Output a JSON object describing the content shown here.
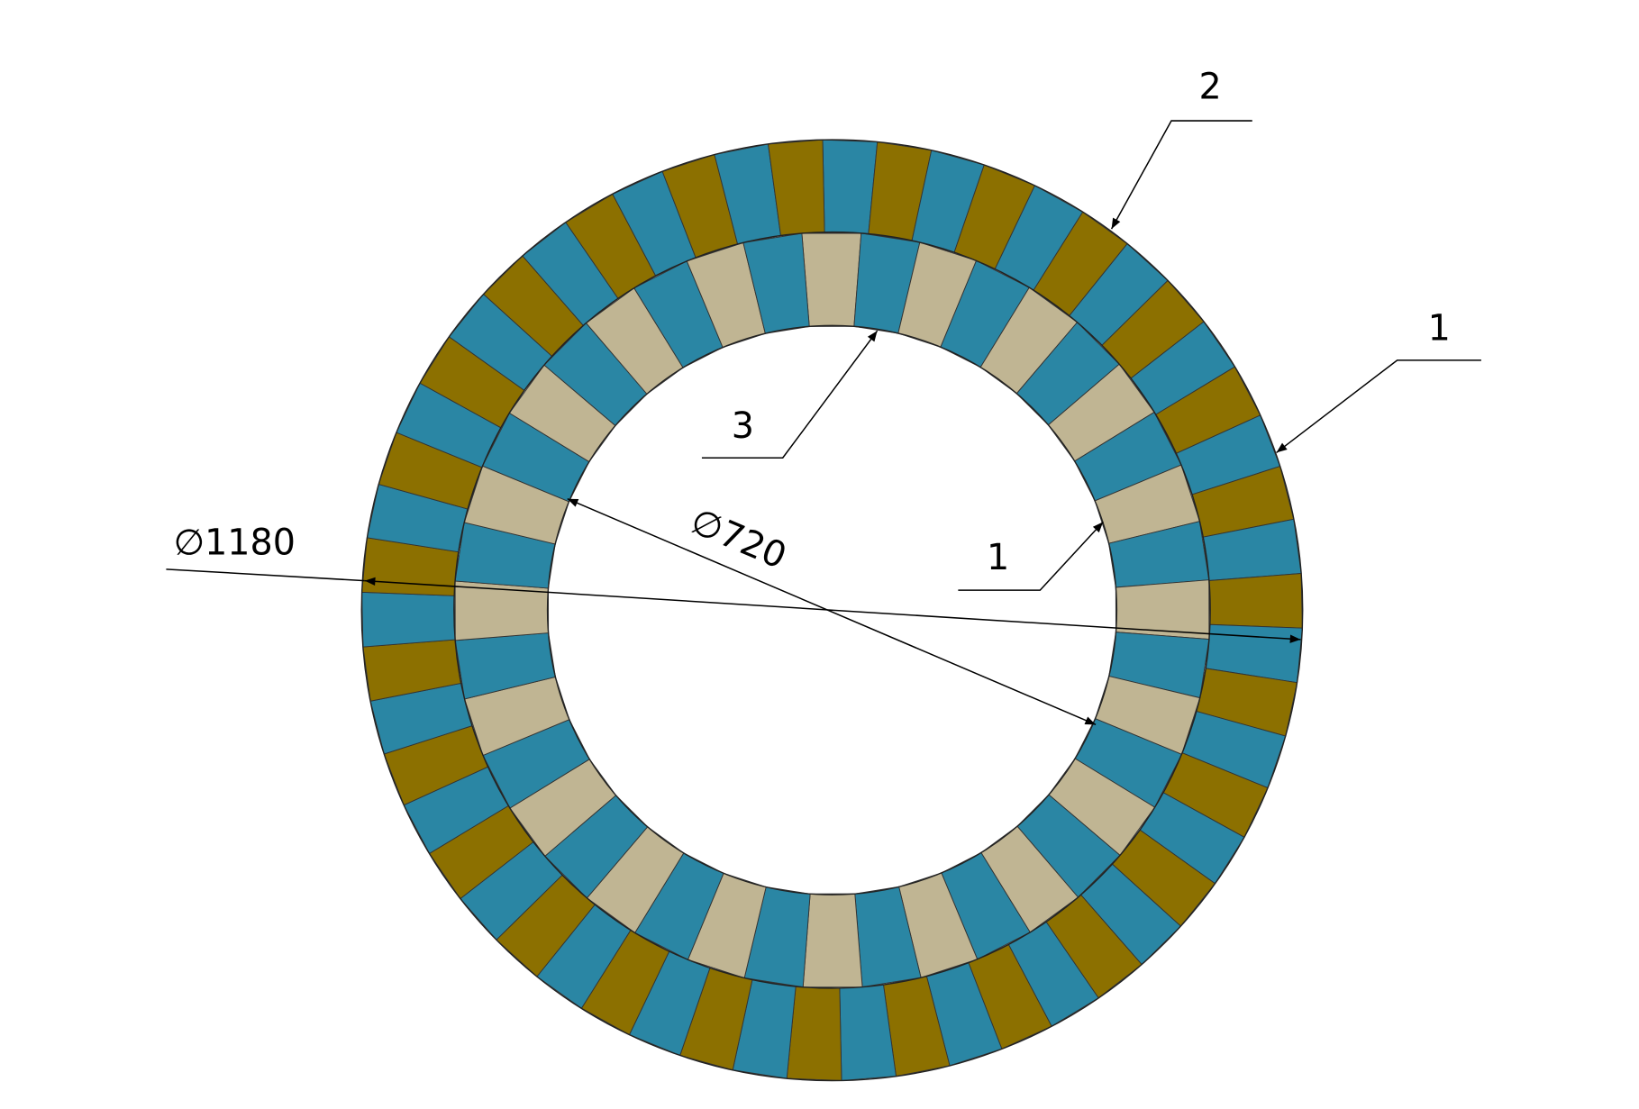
{
  "callouts": [
    {
      "label": "2"
    },
    {
      "label": "1"
    },
    {
      "label": "3"
    },
    {
      "label": "1"
    }
  ],
  "dimensions": [
    {
      "label": "∅1180"
    },
    {
      "label": "∅720"
    }
  ]
}
